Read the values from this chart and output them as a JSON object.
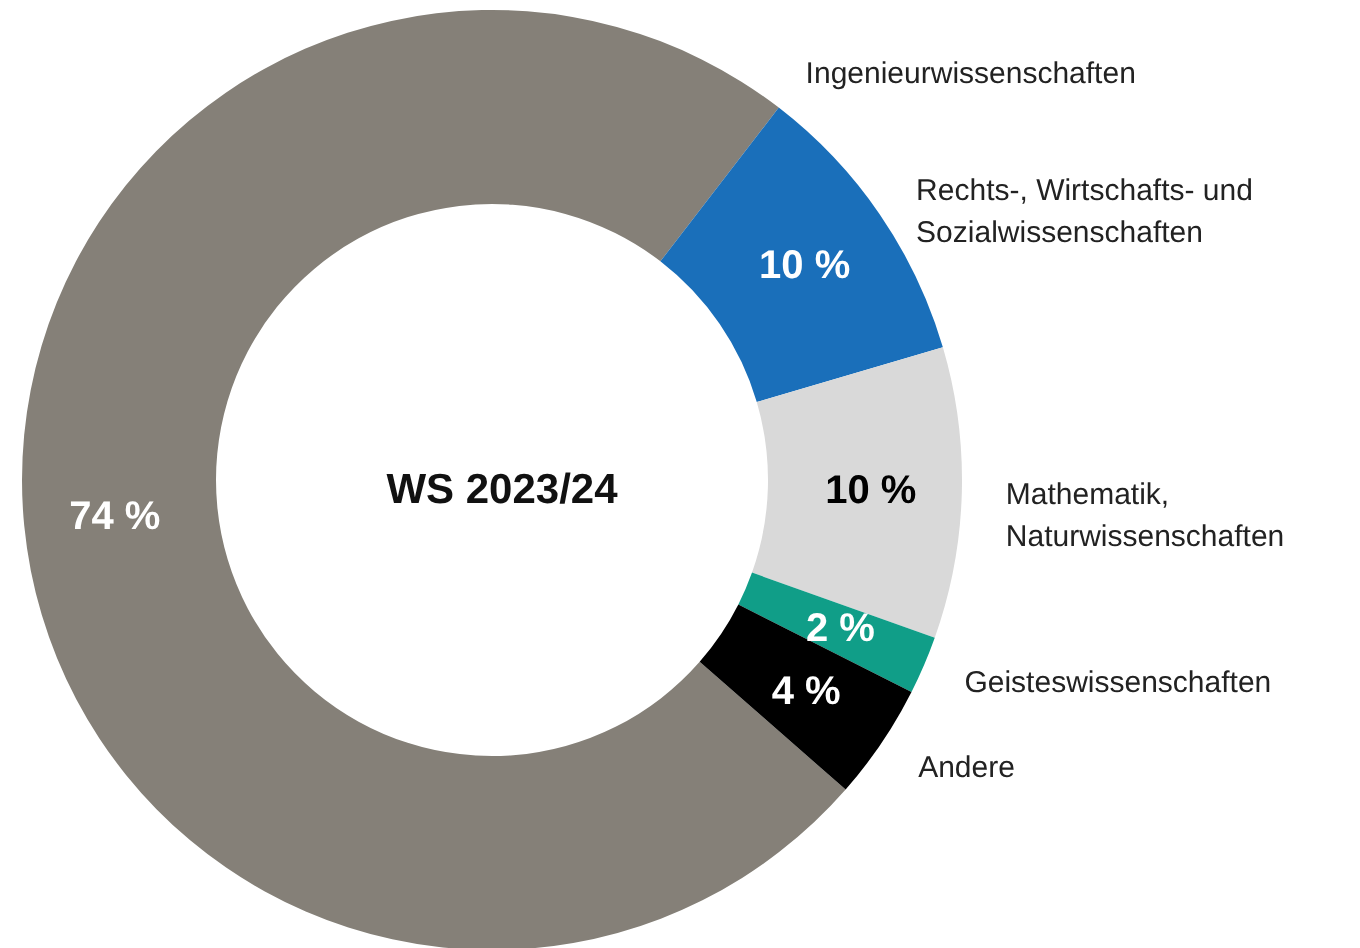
{
  "chart_data": {
    "type": "donut",
    "title": "WS 2023/24",
    "categories": [
      "Ingenieurwissenschaften",
      "Rechts-, Wirtschafts- und Sozialwissenschaften",
      "Mathematik, Naturwissenschaften",
      "Geisteswissenschaften",
      "Andere"
    ],
    "values": [
      74,
      10,
      10,
      2,
      4
    ],
    "value_labels": [
      "74 %",
      "10 %",
      "10 %",
      "2 %",
      "4 %"
    ],
    "colors": [
      "#858078",
      "#1a6fba",
      "#d9d9d9",
      "#109e88",
      "#000000"
    ],
    "legend": false
  }
}
